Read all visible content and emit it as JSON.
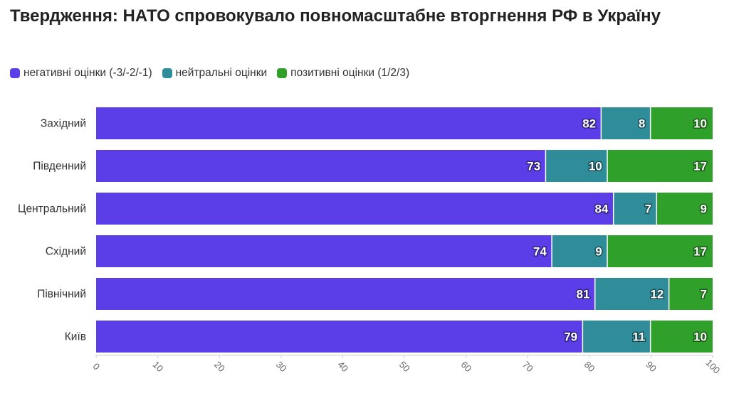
{
  "chart_data": {
    "type": "bar",
    "orientation": "horizontal",
    "stacked": true,
    "title": "Твердження: НАТО спровокувало повномасштабне вторгнення РФ в Україну",
    "categories": [
      "Західний",
      "Південний",
      "Центральний",
      "Східний",
      "Північний",
      "Київ"
    ],
    "series": [
      {
        "name": "негативні оцінки (-3/-2/-1)",
        "color": "#5b3ee8",
        "values": [
          82,
          73,
          84,
          74,
          81,
          79
        ]
      },
      {
        "name": "нейтральні оцінки",
        "color": "#2f8c99",
        "values": [
          8,
          10,
          7,
          9,
          12,
          11
        ]
      },
      {
        "name": "позитивні оцінки (1/2/3)",
        "color": "#2fa02a",
        "values": [
          10,
          17,
          9,
          17,
          7,
          10
        ]
      }
    ],
    "xlim": [
      0,
      100
    ],
    "xticks": [
      0,
      10,
      20,
      30,
      40,
      50,
      60,
      70,
      80,
      90,
      100
    ],
    "grid": false,
    "legend_position": "top-left",
    "data_labels": true
  }
}
